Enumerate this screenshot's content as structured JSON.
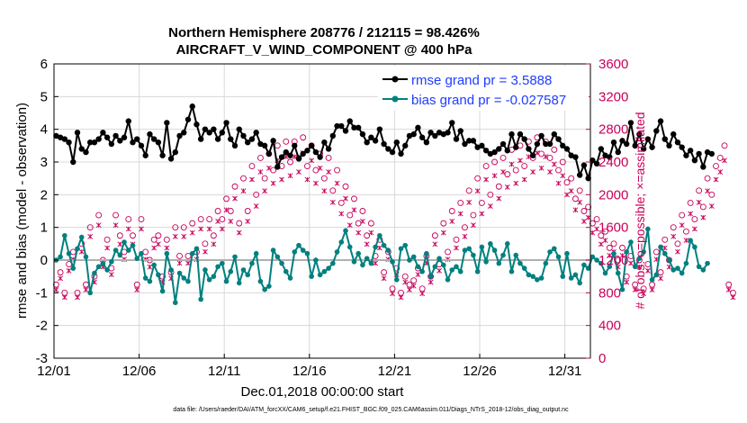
{
  "chart_data": {
    "type": "line",
    "title": "Northern Hemisphere 208776 / 212115 = 98.426%",
    "subtitle": "AIRCRAFT_V_WIND_COMPONENT @ 400 hPa",
    "xlabel": "Dec.01,2018 00:00:00 start",
    "ylabel": "rmse and bias (model - observation)",
    "y2label": "# of obs: o=possible; ×=assimilated",
    "xlim": [
      0,
      31.5
    ],
    "ylim": [
      -3,
      6
    ],
    "y2lim": [
      0,
      3600
    ],
    "x_ticks": [
      0,
      5,
      10,
      15,
      20,
      25,
      30
    ],
    "x_tick_labels": [
      "12/01",
      "12/06",
      "12/11",
      "12/16",
      "12/21",
      "12/26",
      "12/31"
    ],
    "y_ticks": [
      "-3",
      "-2",
      "-1",
      "0",
      "1",
      "2",
      "3",
      "4",
      "5",
      "6"
    ],
    "y2_ticks": [
      "0",
      "400",
      "800",
      "1200",
      "1600",
      "2000",
      "2400",
      "2800",
      "3200",
      "3600"
    ],
    "interval_days": 0.25,
    "series": [
      {
        "name": "rmse grand pr = 3.5888",
        "color": "#000000",
        "values": [
          3.8,
          3.75,
          3.7,
          3.6,
          3.0,
          3.9,
          3.4,
          3.3,
          3.6,
          3.6,
          3.7,
          3.9,
          3.75,
          3.55,
          3.8,
          3.65,
          3.75,
          4.25,
          3.6,
          3.7,
          3.5,
          3.2,
          3.85,
          3.7,
          3.6,
          3.2,
          4.2,
          3.1,
          3.3,
          3.8,
          3.9,
          4.3,
          4.7,
          4.15,
          3.7,
          4.0,
          3.9,
          4.0,
          3.7,
          3.9,
          4.2,
          3.7,
          3.5,
          4.0,
          3.8,
          3.6,
          3.7,
          3.9,
          3.55,
          3.5,
          3.25,
          3.65,
          2.85,
          3.15,
          3.3,
          3.2,
          3.5,
          3.1,
          3.25,
          3.35,
          3.5,
          3.3,
          3.15,
          3.6,
          3.4,
          3.8,
          4.1,
          4.1,
          3.95,
          4.25,
          4.05,
          4.05,
          3.85,
          3.6,
          3.75,
          3.65,
          4.0,
          3.55,
          3.4,
          3.3,
          3.6,
          3.25,
          3.5,
          3.8,
          3.85,
          4.05,
          3.75,
          3.6,
          3.9,
          3.8,
          3.9,
          3.85,
          3.9,
          4.2,
          3.7,
          3.95,
          3.55,
          3.65,
          3.65,
          3.45,
          3.5,
          3.35,
          3.25,
          3.3,
          3.4,
          3.55,
          3.35,
          3.85,
          3.45,
          3.85,
          3.7,
          3.4,
          3.2,
          3.55,
          3.8,
          3.55,
          3.55,
          3.85,
          3.7,
          3.5,
          3.4,
          3.2,
          3.15,
          2.6,
          2.9,
          2.5,
          3.05,
          2.95,
          3.4,
          3.2,
          3.15,
          3.6,
          3.3,
          3.65,
          3.55,
          4.2,
          3.5,
          3.85,
          3.4,
          3.7,
          3.45,
          3.95,
          4.25,
          3.7,
          3.5,
          3.85,
          3.6,
          3.45,
          3.2,
          3.35,
          3.05,
          3.25,
          2.85,
          3.3,
          3.25
        ]
      },
      {
        "name": "bias grand pr = -0.027587",
        "color": "#00807f",
        "values": [
          0.0,
          0.1,
          0.75,
          0.2,
          -0.25,
          0.35,
          0.7,
          0.1,
          -1.0,
          -0.4,
          -0.2,
          -0.1,
          -0.3,
          -0.05,
          0.3,
          0.15,
          0.55,
          0.3,
          0.45,
          0.05,
          0.2,
          -0.55,
          -0.65,
          -0.15,
          -0.45,
          -0.95,
          0.2,
          -0.3,
          -1.3,
          -0.4,
          -0.55,
          -0.65,
          0.2,
          0.35,
          -1.2,
          -0.3,
          -0.6,
          -0.5,
          -0.2,
          -0.1,
          -0.65,
          -0.35,
          0.1,
          -0.7,
          -0.3,
          -0.45,
          -0.1,
          0.2,
          -0.65,
          -0.9,
          -0.8,
          0.3,
          0.1,
          -0.1,
          -0.35,
          -0.55,
          0.25,
          0.45,
          0.3,
          0.2,
          -0.5,
          0.0,
          -0.45,
          -0.35,
          -0.25,
          -0.1,
          0.25,
          0.55,
          0.9,
          0.4,
          -0.05,
          0.2,
          -0.15,
          0.05,
          -0.1,
          0.4,
          0.75,
          0.45,
          0.3,
          -0.05,
          -0.6,
          0.35,
          0.45,
          0.0,
          0.1,
          -0.2,
          -0.35,
          0.2,
          -0.5,
          -0.2,
          0.05,
          -0.15,
          -0.6,
          -0.3,
          -0.2,
          -0.35,
          0.3,
          0.35,
          0.15,
          -0.35,
          0.4,
          -0.05,
          0.5,
          0.3,
          -0.1,
          0.15,
          0.5,
          -0.35,
          0.15,
          -0.1,
          -0.25,
          -0.45,
          -0.5,
          -0.6,
          -0.55,
          -0.1,
          0.25,
          0.35,
          0.1,
          -0.5,
          0.2,
          -0.55,
          -0.45,
          -0.7,
          -0.15,
          -0.25,
          0.1,
          0.0,
          -0.1,
          -0.4,
          -0.2,
          0.2,
          -0.4,
          -0.9,
          0.25,
          0.55,
          -0.2,
          0.05,
          0.25,
          0.95,
          -0.6,
          -0.45,
          0.4,
          0.2,
          0.0,
          -0.3,
          -0.25,
          -0.4,
          -0.1,
          0.6,
          0.4,
          -0.2,
          -0.3,
          -0.1
        ]
      },
      {
        "name": "obs possible (o)",
        "axis": "right",
        "color": "#c8005a",
        "values": [
          900,
          1050,
          800,
          1150,
          1300,
          800,
          1400,
          900,
          1600,
          1000,
          1750,
          1200,
          1450,
          1100,
          1750,
          1500,
          1300,
          1700,
          1500,
          900,
          1700,
          1300,
          1200,
          1450,
          1500,
          1000,
          1450,
          1050,
          1600,
          1250,
          1600,
          1250,
          1650,
          1300,
          1700,
          1400,
          1700,
          1500,
          1800,
          1700,
          1950,
          1800,
          2100,
          1650,
          2200,
          1800,
          2350,
          2000,
          2450,
          2200,
          2500,
          2300,
          2600,
          2350,
          2650,
          2400,
          2650,
          2450,
          2700,
          2350,
          2600,
          2300,
          2500,
          2200,
          2450,
          2050,
          2300,
          1900,
          2100,
          1750,
          1950,
          1650,
          1800,
          1500,
          1650,
          1250,
          1450,
          1050,
          1300,
          850,
          1100,
          800,
          1000,
          900,
          950,
          1100,
          850,
          1250,
          1000,
          1500,
          1150,
          1650,
          1300,
          1800,
          1450,
          1900,
          1600,
          2050,
          1750,
          2200,
          1900,
          2350,
          2000,
          2400,
          2100,
          2450,
          2250,
          2550,
          2300,
          2600,
          2350,
          2650,
          2450,
          2700,
          2500,
          2650,
          2450,
          2550,
          2300,
          2400,
          2150,
          2200,
          1950,
          2050,
          1800,
          1850,
          1650,
          1700,
          1500,
          1550,
          1350,
          1400,
          1200,
          1350,
          1000,
          1250,
          900,
          1200,
          850,
          1150,
          900,
          1300,
          1050,
          1450,
          1200,
          1600,
          1400,
          1750,
          1550,
          1900,
          1700,
          2050,
          1850,
          2200,
          2000,
          2350,
          2450,
          2600,
          900,
          800
        ]
      }
    ],
    "legend": [
      "rmse grand pr = 3.5888",
      "bias grand pr = -0.027587"
    ],
    "grid": true,
    "legend_position": "top-right"
  },
  "footer": "data file: /Users/raeder/DAI/ATM_forcXX/CAM6_setup/f.e21.FHIST_BGC.f09_025.CAM6assim.011/Diags_NTrS_2018-12/obs_diag_output.nc"
}
